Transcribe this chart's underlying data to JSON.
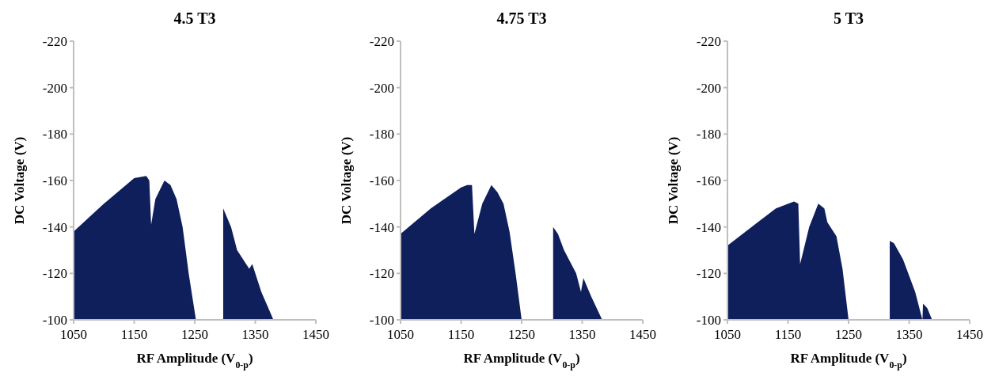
{
  "chart_data": [
    {
      "type": "area",
      "title": "4.5 T3",
      "xlabel": "RF Amplitude (V$_{0-p}$)",
      "ylabel": "DC Voltage (V)",
      "xlim": [
        1050,
        1450
      ],
      "xticks": [
        1050,
        1150,
        1250,
        1350,
        1450
      ],
      "ylim": [
        -100,
        -220
      ],
      "yticks": [
        -100,
        -120,
        -140,
        -160,
        -180,
        -200,
        -220
      ],
      "grid": false,
      "series": [
        {
          "color": "#0f1f5c",
          "x": [
            1050,
            1100,
            1150,
            1170,
            1175,
            1178,
            1185,
            1200,
            1210,
            1220,
            1230,
            1240,
            1252,
            1275,
            1297,
            1310,
            1320,
            1340,
            1345,
            1360,
            1380
          ],
          "values": [
            -138,
            -150,
            -161,
            -162,
            -160,
            -141,
            -152,
            -160,
            -158,
            -152,
            -140,
            -120,
            -100,
            null,
            -148,
            -140,
            -130,
            -122,
            -124,
            -112,
            -100
          ]
        }
      ]
    },
    {
      "type": "area",
      "title": "4.75 T3",
      "xlabel": "RF Amplitude (V$_{0-p}$)",
      "ylabel": "DC Voltage (V)",
      "xlim": [
        1050,
        1450
      ],
      "xticks": [
        1050,
        1150,
        1250,
        1350,
        1450
      ],
      "ylim": [
        -100,
        -220
      ],
      "yticks": [
        -100,
        -120,
        -140,
        -160,
        -180,
        -200,
        -220
      ],
      "grid": false,
      "series": [
        {
          "color": "#0f1f5c",
          "x": [
            1050,
            1100,
            1150,
            1160,
            1168,
            1172,
            1185,
            1200,
            1210,
            1220,
            1230,
            1240,
            1250,
            1275,
            1302,
            1310,
            1320,
            1340,
            1348,
            1352,
            1365,
            1383
          ],
          "values": [
            -137,
            -148,
            -157,
            -158,
            -158,
            -137,
            -150,
            -158,
            -155,
            -150,
            -138,
            -120,
            -100,
            null,
            -140,
            -137,
            -130,
            -120,
            -112,
            -118,
            -110,
            -100
          ]
        }
      ]
    },
    {
      "type": "area",
      "title": "5 T3",
      "xlabel": "RF Amplitude (V$_{0-p}$)",
      "ylabel": "DC Voltage (V)",
      "xlim": [
        1050,
        1450
      ],
      "xticks": [
        1050,
        1150,
        1250,
        1350,
        1450
      ],
      "ylim": [
        -100,
        -220
      ],
      "yticks": [
        -100,
        -120,
        -140,
        -160,
        -180,
        -200,
        -220
      ],
      "grid": false,
      "series": [
        {
          "color": "#0f1f5c",
          "x": [
            1050,
            1100,
            1130,
            1160,
            1167,
            1170,
            1185,
            1200,
            1210,
            1215,
            1230,
            1240,
            1250,
            1285,
            1318,
            1325,
            1340,
            1360,
            1372,
            1373,
            1380,
            1388
          ],
          "values": [
            -132,
            -142,
            -148,
            -151,
            -150,
            -124,
            -140,
            -150,
            -148,
            -142,
            -136,
            -122,
            -100,
            null,
            -134,
            -133,
            -126,
            -112,
            -100,
            -107,
            -105,
            -100
          ]
        }
      ]
    }
  ]
}
